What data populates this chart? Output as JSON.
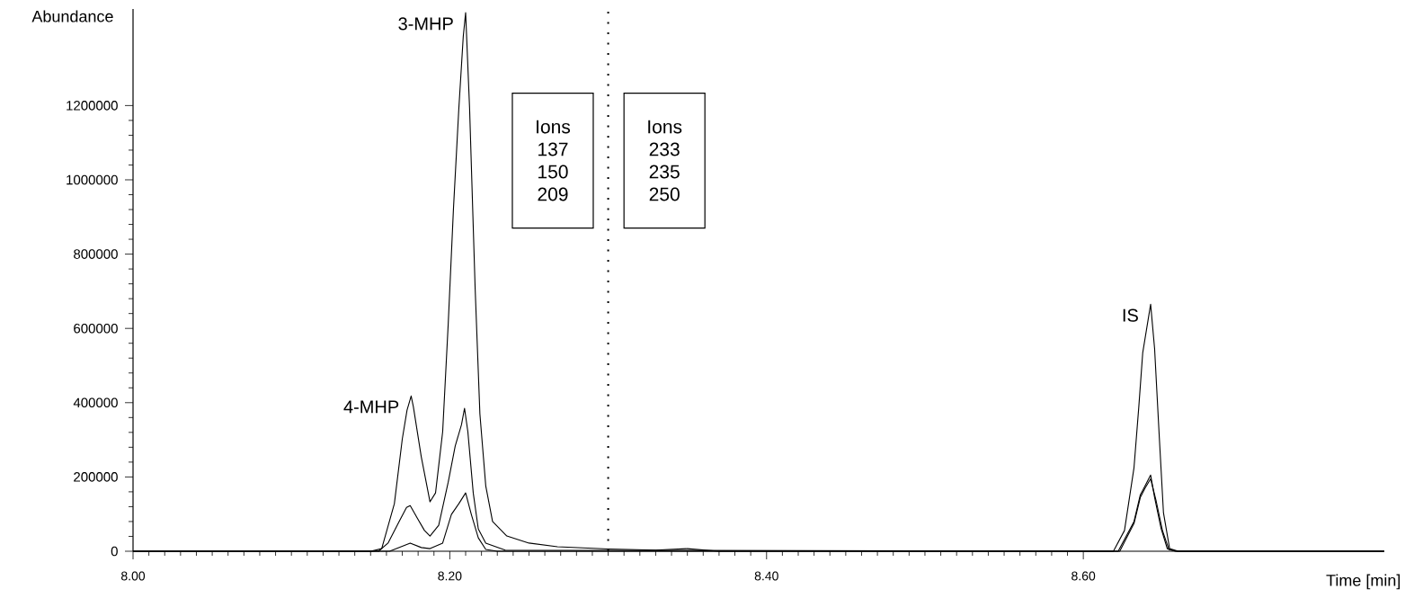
{
  "chart_data": {
    "type": "line",
    "xlabel": "Time [min]",
    "ylabel": "Abundance",
    "marker": "none",
    "xlim": [
      8.0,
      8.79
    ],
    "ylim": [
      0,
      1460000
    ],
    "xticks": [
      {
        "value": 8.0,
        "label": "8.00"
      },
      {
        "value": 8.2,
        "label": "8.20"
      },
      {
        "value": 8.4,
        "label": "8.40"
      },
      {
        "value": 8.6,
        "label": "8.60"
      }
    ],
    "yticks": [
      0,
      200000,
      400000,
      600000,
      800000,
      1000000,
      1200000
    ],
    "series": [
      {
        "color": "#000000",
        "x": [
          8.0,
          8.15,
          8.157,
          8.165,
          8.17,
          8.173,
          8.1756,
          8.177,
          8.182,
          8.1875,
          8.191,
          8.1955,
          8.199,
          8.2023,
          8.2057,
          8.2085,
          8.21,
          8.2125,
          8.216,
          8.219,
          8.2227,
          8.227,
          8.236,
          8.25,
          8.268,
          8.3,
          8.33,
          8.35,
          8.37,
          8.619,
          8.626,
          8.632,
          8.635,
          8.6375,
          8.6425,
          8.645,
          8.648,
          8.6506,
          8.6545,
          8.66,
          8.79
        ],
        "values": [
          0,
          0,
          7000,
          128000,
          302000,
          380000,
          418000,
          389000,
          254000,
          133000,
          157000,
          322000,
          612000,
          921000,
          1192000,
          1386000,
          1450000,
          1192000,
          708000,
          370000,
          176000,
          80000,
          41000,
          22000,
          12000,
          6000,
          3000,
          7000,
          0,
          0,
          56000,
          225000,
          387000,
          534000,
          665000,
          546000,
          305000,
          104000,
          7000,
          0,
          0
        ]
      },
      {
        "color": "#000000",
        "x": [
          8.0,
          8.155,
          8.161,
          8.168,
          8.1727,
          8.175,
          8.1795,
          8.184,
          8.1875,
          8.193,
          8.199,
          8.2034,
          8.2074,
          8.2093,
          8.2114,
          8.2148,
          8.218,
          8.2227,
          8.235,
          8.622,
          8.632,
          8.636,
          8.639,
          8.6425,
          8.645,
          8.649,
          8.653,
          8.658,
          8.79
        ],
        "values": [
          0,
          0,
          22000,
          80000,
          118000,
          123000,
          89000,
          56000,
          41000,
          70000,
          186000,
          283000,
          341000,
          385000,
          322000,
          157000,
          60000,
          22000,
          3000,
          0,
          80000,
          152000,
          176000,
          205000,
          145000,
          63000,
          7000,
          0,
          0
        ]
      },
      {
        "color": "#000000",
        "x": [
          8.0,
          8.162,
          8.175,
          8.182,
          8.1875,
          8.1955,
          8.201,
          8.2057,
          8.21,
          8.2136,
          8.218,
          8.2227,
          8.23,
          8.623,
          8.632,
          8.636,
          8.639,
          8.6425,
          8.646,
          8.65,
          8.654,
          8.659,
          8.79
        ],
        "values": [
          0,
          0,
          22000,
          10000,
          7000,
          22000,
          99000,
          128000,
          157000,
          99000,
          36000,
          5000,
          0,
          0,
          75000,
          145000,
          170000,
          195000,
          135000,
          55000,
          5000,
          0,
          0
        ]
      }
    ],
    "ref_lines": [
      {
        "axis": "x",
        "value": 8.3,
        "line_style": "dotted"
      }
    ],
    "annotations": [
      {
        "text": "3-MHP",
        "x": 8.21,
        "y": 1450000
      },
      {
        "text": "4-MHP",
        "x": 8.1756,
        "y": 418000
      },
      {
        "text": "IS",
        "x": 8.6425,
        "y": 665000
      },
      "Ions",
      "137",
      "150",
      "209",
      "Ions",
      "233",
      "235",
      "250"
    ]
  }
}
